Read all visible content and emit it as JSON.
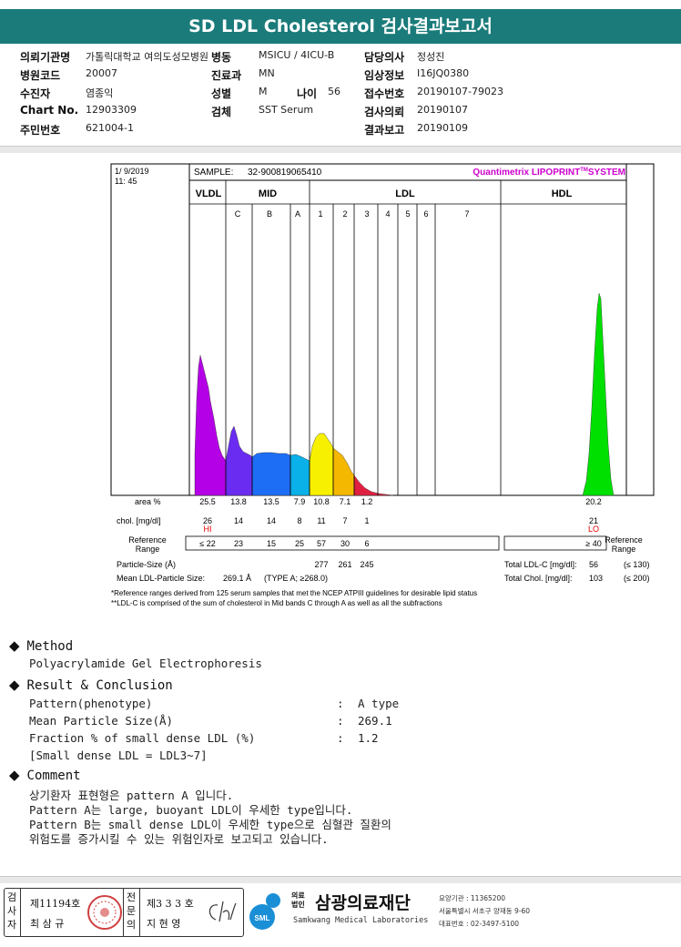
{
  "report": {
    "title": "SD LDL Cholesterol 검사결과보고서"
  },
  "patient_info": {
    "institution_label": "의뢰기관명",
    "institution": "가톨릭대학교 여의도성모병원",
    "ward_label": "병동",
    "ward": "MSICU / 4ICU-B",
    "doctor_label": "담당의사",
    "doctor": "정성진",
    "hospital_code_label": "병원코드",
    "hospital_code": "20007",
    "department_label": "진료과",
    "department": "MN",
    "clinical_info_label": "임상정보",
    "clinical_info": "I16JQ0380",
    "patient_label": "수진자",
    "patient": "염종익",
    "sex_label": "성별",
    "sex": "M",
    "age_label": "나이",
    "age": "56",
    "receipt_label": "접수번호",
    "receipt": "20190107-79023",
    "chart_no_label": "Chart No.",
    "chart_no": "12903309",
    "specimen_label": "검체",
    "specimen": "SST Serum",
    "request_date_label": "검사의뢰",
    "request_date": "20190107",
    "resident_label": "주민번호",
    "resident": "621004-1",
    "report_date_label": "결과보고",
    "report_date": "20190109"
  },
  "chart_data": {
    "type": "area",
    "header": {
      "date": "1/ 9/2019",
      "time": "11: 45",
      "sample_label": "SAMPLE:",
      "sample": "32-900819065410",
      "brand": "Quantimetrix LIPOPRINT",
      "brand_tm": "TM",
      "brand_suffix": "SYSTEM"
    },
    "groups": [
      "VLDL",
      "MID",
      "LDL",
      "HDL"
    ],
    "bands": [
      "C",
      "B",
      "A",
      "1",
      "2",
      "3",
      "4",
      "5",
      "6",
      "7"
    ],
    "rows": [
      {
        "label": "area %",
        "values": [
          "25.5",
          "13.8",
          "13.5",
          "7.9",
          "10.8",
          "7.1",
          "1.2"
        ],
        "hdl": "20.2"
      },
      {
        "label": "chol. [mg/dl]",
        "values": [
          "26",
          "14",
          "14",
          "8",
          "11",
          "7",
          "1"
        ],
        "hdl": "21"
      }
    ],
    "flags": {
      "vldl": "HI",
      "hdl": "LO"
    },
    "reference_range": {
      "label_line1": "Reference",
      "label_line2": "Range",
      "values": [
        "≤ 22",
        "23",
        "15",
        "25",
        "57",
        "30",
        "6"
      ],
      "hdl": "≥ 40"
    },
    "particle_size": {
      "label": "Particle-Size (Å)",
      "values": [
        "277",
        "261",
        "245"
      ]
    },
    "mean_ldl": {
      "label": "Mean LDL-Particle Size:",
      "value": "269.1 Å",
      "note": "(TYPE A; ≥268.0)"
    },
    "total_ldl": {
      "label": "Total LDL-C [mg/dl]:",
      "value": "56",
      "range": "(≤ 130)"
    },
    "total_chol": {
      "label": "Total Chol. [mg/dl]:",
      "value": "103",
      "range": "(≤ 200)"
    },
    "right_ref": {
      "line1": "Reference",
      "line2": "Range"
    },
    "footnotes": [
      "*Reference ranges derived from 125 serum samples that met the NCEP ATPIII guidelines for desirable lipid status",
      "**LDL-C is comprised of the sum of cholesterol in Mid bands C through A as well as all the subfractions"
    ],
    "colors": {
      "vldl": "#b400e6",
      "midC": "#6a2cf0",
      "midB": "#1e6ef5",
      "midA": "#0ab0e8",
      "ldl1": "#f7f000",
      "ldl2": "#f5b800",
      "ldl3": "#e02040",
      "hdl": "#00e000"
    }
  },
  "method": {
    "heading": "Method",
    "text": "Polyacrylamide Gel Electrophoresis"
  },
  "result": {
    "heading": "Result & Conclusion",
    "lines": [
      {
        "label": "Pattern(phenotype)",
        "value": "A type"
      },
      {
        "label": "Mean Particle Size(Å)",
        "value": "269.1"
      },
      {
        "label": "Fraction % of small dense LDL (%)",
        "value": "1.2"
      }
    ],
    "note": "[Small dense LDL = LDL3~7]",
    "colon": ":"
  },
  "comment": {
    "heading": "Comment",
    "lines": [
      "상기환자 표현형은 pattern A 입니다.",
      "Pattern A는 large, buoyant LDL이 우세한 type입니다.",
      "Pattern B는 small dense LDL이 우세한 type으로 심혈관 질환의",
      "위험도를 증가시킬 수 있는 위험인자로 보고되고 있습니다."
    ]
  },
  "signatures": {
    "v1": [
      "검",
      "사",
      "자"
    ],
    "no1": "제11194호",
    "name1": "최 삼 규",
    "v2": [
      "전",
      "문",
      "의"
    ],
    "no2": "제3 3 3 호",
    "name2": "지 현 영"
  },
  "organization": {
    "tag": "의료법인",
    "name": "삼광의료재단",
    "english": "Samkwang Medical Laboratories",
    "code": "요양기관 : 11365200",
    "address": "서울특별시 서초구 양재동 9-60",
    "phone": "대표번호 : 02-3497-5100",
    "logo_text": "SML"
  }
}
